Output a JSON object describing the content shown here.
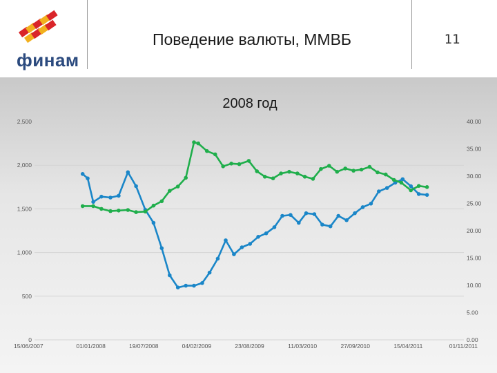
{
  "header": {
    "title": "Поведение валюты, ММВБ",
    "page_number": "11",
    "logo_text": "финам"
  },
  "colors": {
    "blue_series": "#1a86c8",
    "green_series": "#1fae4b",
    "logo_red": "#d9252a",
    "logo_yellow": "#f2b01e",
    "logo_text": "#2b4a7e"
  },
  "chart_data": {
    "type": "line",
    "title": "2008 год",
    "xlabel": "",
    "ylabel": "",
    "x_tick_labels": [
      "15/06/2007",
      "01/01/2008",
      "19/07/2008",
      "04/02/2009",
      "23/08/2009",
      "11/03/2010",
      "27/09/2010",
      "15/04/2011",
      "01/11/2011"
    ],
    "y_left_ticks": [
      "0",
      "500",
      "1,000",
      "1,500",
      "2,000",
      "2,500"
    ],
    "y_right_ticks": [
      "0.00",
      "5.00",
      "10.00",
      "15.00",
      "20.00",
      "25.00",
      "30.00",
      "35.00",
      "40.00"
    ],
    "ylim_left": [
      0,
      2500
    ],
    "ylim_right": [
      0,
      40
    ],
    "grid": true,
    "series": [
      {
        "axis": "left",
        "color": "#1a86c8",
        "points": [
          [
            "2007-12-01",
            1900
          ],
          [
            "2007-12-20",
            1850
          ],
          [
            "2008-01-10",
            1580
          ],
          [
            "2008-02-10",
            1640
          ],
          [
            "2008-03-15",
            1630
          ],
          [
            "2008-04-15",
            1650
          ],
          [
            "2008-05-20",
            1920
          ],
          [
            "2008-06-20",
            1760
          ],
          [
            "2008-07-25",
            1490
          ],
          [
            "2008-08-25",
            1340
          ],
          [
            "2008-09-25",
            1050
          ],
          [
            "2008-10-25",
            740
          ],
          [
            "2008-11-25",
            600
          ],
          [
            "2008-12-25",
            620
          ],
          [
            "2009-01-25",
            620
          ],
          [
            "2009-02-25",
            650
          ],
          [
            "2009-03-25",
            770
          ],
          [
            "2009-04-25",
            930
          ],
          [
            "2009-05-25",
            1140
          ],
          [
            "2009-06-25",
            980
          ],
          [
            "2009-07-25",
            1060
          ],
          [
            "2009-08-25",
            1100
          ],
          [
            "2009-09-25",
            1180
          ],
          [
            "2009-10-25",
            1220
          ],
          [
            "2009-11-25",
            1290
          ],
          [
            "2009-12-25",
            1420
          ],
          [
            "2010-01-25",
            1430
          ],
          [
            "2010-02-25",
            1340
          ],
          [
            "2010-03-25",
            1450
          ],
          [
            "2010-04-25",
            1440
          ],
          [
            "2010-05-25",
            1320
          ],
          [
            "2010-06-25",
            1300
          ],
          [
            "2010-07-25",
            1420
          ],
          [
            "2010-08-25",
            1370
          ],
          [
            "2010-09-25",
            1450
          ],
          [
            "2010-10-25",
            1520
          ],
          [
            "2010-11-25",
            1560
          ],
          [
            "2010-12-25",
            1700
          ],
          [
            "2011-01-25",
            1740
          ],
          [
            "2011-02-25",
            1800
          ],
          [
            "2011-03-25",
            1840
          ],
          [
            "2011-04-25",
            1760
          ],
          [
            "2011-05-25",
            1670
          ],
          [
            "2011-06-25",
            1660
          ]
        ]
      },
      {
        "axis": "right",
        "color": "#1fae4b",
        "points": [
          [
            "2007-12-01",
            24.5
          ],
          [
            "2008-01-10",
            24.5
          ],
          [
            "2008-02-10",
            24.0
          ],
          [
            "2008-03-15",
            23.6
          ],
          [
            "2008-04-15",
            23.7
          ],
          [
            "2008-05-20",
            23.8
          ],
          [
            "2008-06-20",
            23.4
          ],
          [
            "2008-07-25",
            23.5
          ],
          [
            "2008-08-25",
            24.6
          ],
          [
            "2008-09-25",
            25.4
          ],
          [
            "2008-10-25",
            27.3
          ],
          [
            "2008-11-25",
            28.1
          ],
          [
            "2008-12-25",
            29.7
          ],
          [
            "2009-01-25",
            36.2
          ],
          [
            "2009-02-10",
            36.0
          ],
          [
            "2009-03-15",
            34.6
          ],
          [
            "2009-04-15",
            34.0
          ],
          [
            "2009-05-15",
            31.8
          ],
          [
            "2009-06-15",
            32.3
          ],
          [
            "2009-07-15",
            32.2
          ],
          [
            "2009-08-20",
            32.8
          ],
          [
            "2009-09-20",
            30.9
          ],
          [
            "2009-10-20",
            29.9
          ],
          [
            "2009-11-20",
            29.6
          ],
          [
            "2009-12-20",
            30.5
          ],
          [
            "2010-01-20",
            30.8
          ],
          [
            "2010-02-20",
            30.5
          ],
          [
            "2010-03-20",
            29.9
          ],
          [
            "2010-04-20",
            29.5
          ],
          [
            "2010-05-20",
            31.3
          ],
          [
            "2010-06-20",
            31.9
          ],
          [
            "2010-07-20",
            30.8
          ],
          [
            "2010-08-20",
            31.4
          ],
          [
            "2010-09-20",
            31.0
          ],
          [
            "2010-10-20",
            31.2
          ],
          [
            "2010-11-20",
            31.7
          ],
          [
            "2010-12-20",
            30.7
          ],
          [
            "2011-01-20",
            30.3
          ],
          [
            "2011-02-20",
            29.3
          ],
          [
            "2011-03-20",
            28.8
          ],
          [
            "2011-04-25",
            27.4
          ],
          [
            "2011-05-25",
            28.2
          ],
          [
            "2011-06-25",
            28.0
          ]
        ]
      }
    ]
  }
}
